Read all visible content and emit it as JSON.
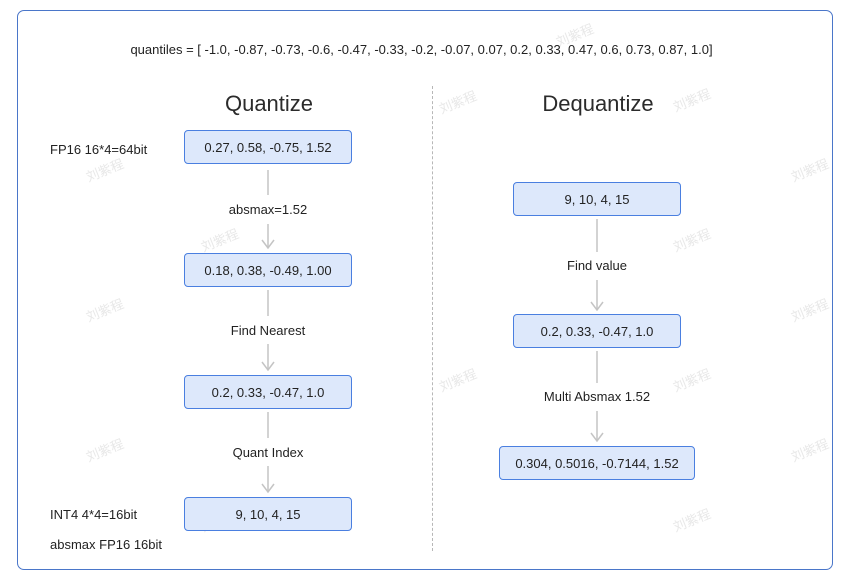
{
  "quantiles_line": "quantiles = [ -1.0, -0.87, -0.73, -0.6, -0.47, -0.33, -0.2, -0.07, 0.07, 0.2, 0.33, 0.47, 0.6, 0.73, 0.87, 1.0]",
  "watermark": "刘紫程",
  "quantize": {
    "title": "Quantize",
    "input_note": "FP16 16*4=64bit",
    "boxes": [
      "0.27, 0.58, -0.75, 1.52",
      "0.18, 0.38, -0.49, 1.00",
      "0.2, 0.33, -0.47, 1.0",
      "9, 10, 4, 15"
    ],
    "steps": [
      "absmax=1.52",
      "Find Nearest",
      "Quant Index"
    ],
    "output_notes": [
      "INT4 4*4=16bit",
      "absmax FP16 16bit"
    ]
  },
  "dequantize": {
    "title": "Dequantize",
    "boxes": [
      "9, 10, 4, 15",
      "0.2, 0.33, -0.47, 1.0",
      "0.304, 0.5016, -0.7144, 1.52"
    ],
    "steps": [
      "Find value",
      "Multi Absmax 1.52"
    ]
  },
  "colors": {
    "box_fill": "#dde8fb",
    "box_border": "#4a7fe0",
    "arrow": "#c4c4c4",
    "frame": "#4a76c9",
    "divider": "#b7b7b7"
  }
}
